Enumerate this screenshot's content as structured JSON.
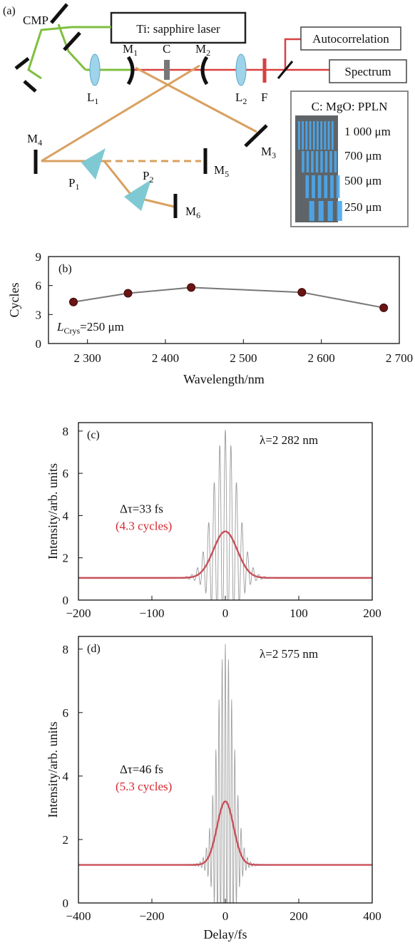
{
  "panel_a": {
    "label": "(a)",
    "laser_box": "Ti: sapphire laser",
    "autocorrelation_box": "Autocorrelation",
    "spectrum_box": "Spectrum",
    "components": {
      "cmp": "CMP",
      "m1": "M",
      "m1_sub": "1",
      "c": "C",
      "m2": "M",
      "m2_sub": "2",
      "l1": "L",
      "l1_sub": "1",
      "l2": "L",
      "l2_sub": "2",
      "f": "F",
      "m3": "M",
      "m3_sub": "3",
      "m4": "M",
      "m4_sub": "4",
      "m5": "M",
      "m5_sub": "5",
      "m6": "M",
      "m6_sub": "6",
      "p1": "P",
      "p1_sub": "1",
      "p2": "P",
      "p2_sub": "2"
    },
    "inset": {
      "title": "C: MgO: PPLN",
      "lengths": [
        "1 000 μm",
        "700 μm",
        "500 μm",
        "250 μm"
      ]
    },
    "colors": {
      "pump": "#7fbf3f",
      "signal": "#d9a060",
      "output": "#d94040",
      "optic": "#9fd3ea"
    }
  },
  "chart_data": [
    {
      "panel": "(b)",
      "type": "line",
      "x": [
        2282,
        2352,
        2433,
        2575,
        2680
      ],
      "y": [
        4.3,
        5.2,
        5.8,
        5.3,
        3.7
      ],
      "xlabel": "Wavelength/nm",
      "ylabel": "Cycles",
      "xlim": [
        2250,
        2700
      ],
      "ylim": [
        0,
        9
      ],
      "xticks": [
        2300,
        2400,
        2500,
        2600,
        2700
      ],
      "xtick_labels": [
        "2 300",
        "2 400",
        "2 500",
        "2 600",
        "2 700"
      ],
      "yticks": [
        0,
        3,
        6,
        9
      ],
      "annotation": {
        "main": "L",
        "sub": "Crys",
        "tail": "=250 μm"
      },
      "colors": {
        "line": "#777777",
        "marker": "#6b1414"
      }
    },
    {
      "panel": "(c)",
      "type": "line",
      "xlabel": "Delay/fs",
      "ylabel": "Intensity/arb. units",
      "xlim": [
        -200,
        200
      ],
      "ylim": [
        0,
        8.4
      ],
      "xticks": [
        -200,
        -100,
        0,
        100,
        200
      ],
      "xtick_labels": [
        "−200",
        "−100",
        "0",
        "100",
        "200"
      ],
      "yticks": [
        0,
        2,
        4,
        6,
        8
      ],
      "wavelength_label": "λ=2 282 nm",
      "duration_label": "Δτ=33 fs",
      "cycles_label": "(4.3 cycles)",
      "baseline": 1.05,
      "peak": 8.0,
      "envelope_peak": 3.25,
      "fwhm_fs": 33,
      "fringe_period_fs": 7.6,
      "colors": {
        "fringes": "#9a9a9a",
        "envelope": "#c8505a",
        "cycles_text": "#d8262e"
      }
    },
    {
      "panel": "(d)",
      "type": "line",
      "xlabel": "Delay/fs",
      "ylabel": "Intensity/arb. units",
      "xlim": [
        -400,
        400
      ],
      "ylim": [
        0,
        8.4
      ],
      "xticks": [
        -400,
        -200,
        0,
        200,
        400
      ],
      "xtick_labels": [
        "−400",
        "−200",
        "0",
        "200",
        "400"
      ],
      "yticks": [
        0,
        2,
        4,
        6,
        8
      ],
      "wavelength_label": "λ=2 575 nm",
      "duration_label": "Δτ=46 fs",
      "cycles_label": "(5.3 cycles)",
      "baseline": 1.2,
      "peak": 8.1,
      "envelope_peak": 3.2,
      "fwhm_fs": 46,
      "fringe_period_fs": 8.6,
      "colors": {
        "fringes": "#a0a0a0",
        "envelope": "#c8505a",
        "cycles_text": "#d8262e"
      }
    }
  ]
}
